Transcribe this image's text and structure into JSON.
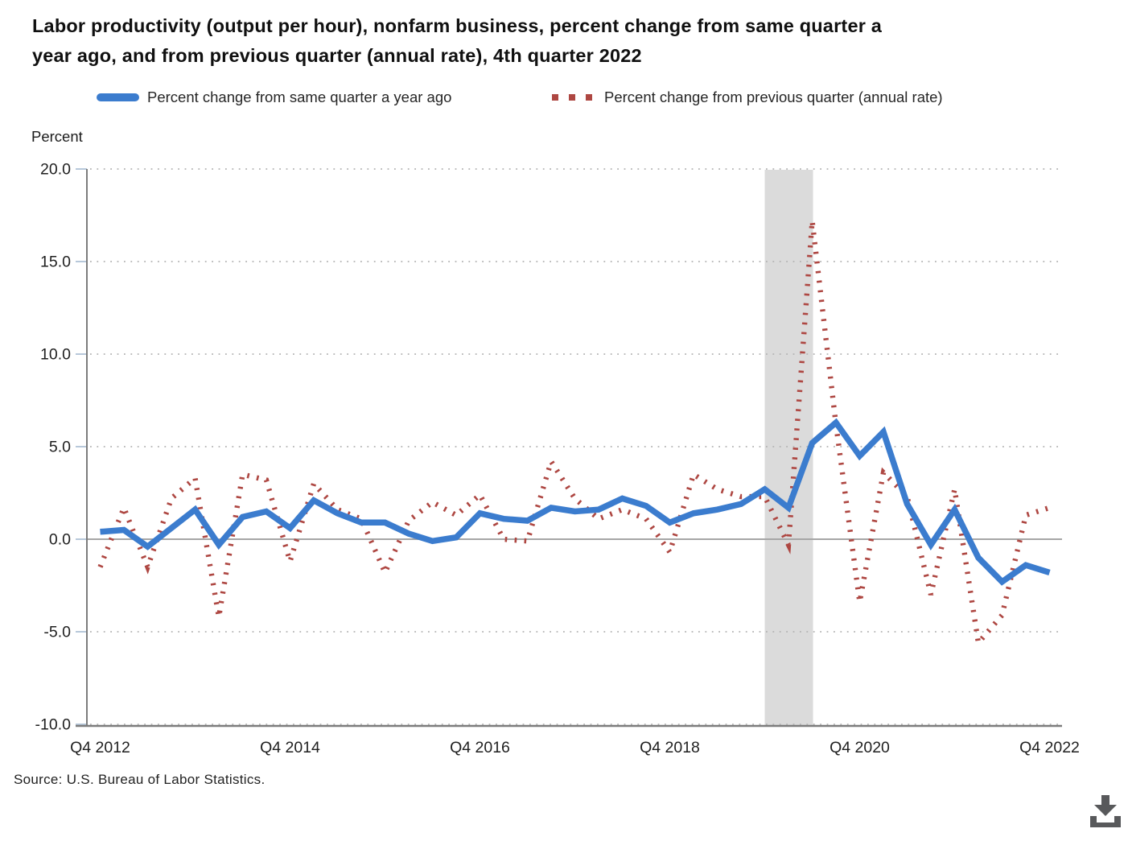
{
  "title_lines": [
    "Labor productivity (output per hour), nonfarm business, percent change from same quarter a",
    "year ago, and from previous quarter (annual rate), 4th quarter 2022"
  ],
  "legend": {
    "items": [
      {
        "label": "Percent change from same quarter a year ago",
        "color": "#3b7cce",
        "marker": "line"
      },
      {
        "label": "Percent change from previous quarter (annual rate)",
        "color": "#ae4742",
        "marker": "dots"
      }
    ]
  },
  "source": "Source: U.S. Bureau of Labor Statistics.",
  "download": {
    "name": "download-chart",
    "color": "#58595b"
  },
  "chart_data": {
    "type": "line",
    "title": "Labor productivity (output per hour), nonfarm business, percent change from same quarter a year ago, and from previous quarter (annual rate), 4th quarter 2022",
    "ylabel": "Percent",
    "ylim": [
      -10.0,
      20.0
    ],
    "grid": true,
    "legend_position": "top",
    "y_axis": {
      "title": "Percent",
      "ticks": [
        {
          "label": "20.0",
          "value": 20
        },
        {
          "label": "15.0",
          "value": 15
        },
        {
          "label": "10.0",
          "value": 10
        },
        {
          "label": "5.0",
          "value": 5
        },
        {
          "label": "0.0",
          "value": 0
        },
        {
          "label": "-5.0",
          "value": -5
        },
        {
          "label": "-10.0",
          "value": -10
        }
      ]
    },
    "x_axis": {
      "tick_labels": [
        {
          "label": "Q4 2012",
          "index": 0
        },
        {
          "label": "Q4 2014",
          "index": 8
        },
        {
          "label": "Q4 2016",
          "index": 16
        },
        {
          "label": "Q4 2018",
          "index": 24
        },
        {
          "label": "Q4 2020",
          "index": 32
        },
        {
          "label": "Q4 2022",
          "index": 40
        }
      ]
    },
    "categories": [
      "Q4 2012",
      "Q1 2013",
      "Q2 2013",
      "Q3 2013",
      "Q4 2013",
      "Q1 2014",
      "Q2 2014",
      "Q3 2014",
      "Q4 2014",
      "Q1 2015",
      "Q2 2015",
      "Q3 2015",
      "Q4 2015",
      "Q1 2016",
      "Q2 2016",
      "Q3 2016",
      "Q4 2016",
      "Q1 2017",
      "Q2 2017",
      "Q3 2017",
      "Q4 2017",
      "Q1 2018",
      "Q2 2018",
      "Q3 2018",
      "Q4 2018",
      "Q1 2019",
      "Q2 2019",
      "Q3 2019",
      "Q4 2019",
      "Q1 2020",
      "Q2 2020",
      "Q3 2020",
      "Q4 2020",
      "Q1 2021",
      "Q2 2021",
      "Q3 2021",
      "Q4 2021",
      "Q1 2022",
      "Q2 2022",
      "Q3 2022",
      "Q4 2022"
    ],
    "series": [
      {
        "name": "Percent change from same quarter a year ago",
        "style": "solid",
        "color": "#3b7cce",
        "values": [
          0.4,
          0.5,
          -0.4,
          0.6,
          1.6,
          -0.3,
          1.2,
          1.5,
          0.6,
          2.1,
          1.4,
          0.9,
          0.9,
          0.3,
          -0.1,
          0.1,
          1.4,
          1.1,
          1.0,
          1.7,
          1.5,
          1.6,
          2.2,
          1.8,
          0.9,
          1.4,
          1.6,
          1.9,
          2.7,
          1.7,
          5.2,
          6.3,
          4.5,
          5.8,
          1.9,
          -0.3,
          1.6,
          -1.0,
          -2.3,
          -1.4,
          -1.8
        ]
      },
      {
        "name": "Percent change from previous quarter (annual rate)",
        "style": "dotted",
        "color": "#ae4742",
        "values": [
          -1.5,
          1.7,
          -1.5,
          2.2,
          3.3,
          -4.2,
          3.5,
          3.2,
          -1.2,
          3.0,
          1.6,
          1.1,
          -1.8,
          1.0,
          2.0,
          1.3,
          2.4,
          0.0,
          -0.1,
          4.2,
          2.2,
          1.1,
          1.6,
          1.1,
          -0.7,
          3.5,
          2.7,
          2.3,
          2.3,
          -0.3,
          17.2,
          6.2,
          -3.4,
          3.6,
          2.3,
          -3.0,
          2.7,
          -5.6,
          -4.1,
          1.3,
          1.7
        ]
      }
    ],
    "recession_band": {
      "from": "Q4 2019",
      "to": "Q2 2020",
      "from_index": 28,
      "to_index": 30,
      "color": "#dbdbdb"
    },
    "colors": {
      "gridline": "#b3b3b3",
      "zero_line": "#a6a6a6",
      "axis": "#7c7c7c",
      "axis_tick": "#b7c8da",
      "tick_text": "#1f1f1f"
    }
  }
}
